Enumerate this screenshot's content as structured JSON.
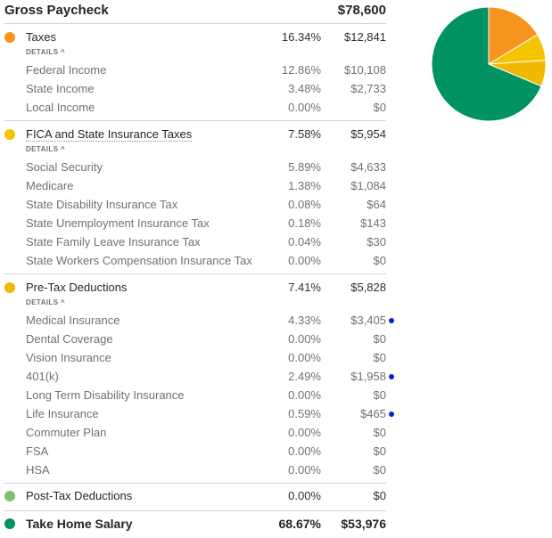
{
  "gross": {
    "label": "Gross Paycheck",
    "amount": "$78,600"
  },
  "details_label": "DETAILS ^",
  "colors": {
    "taxes": "#f7941d",
    "fica": "#f5c400",
    "pretax": "#f0b800",
    "posttax": "#7dc36b",
    "takehome": "#009262",
    "marker": "#0a1fe0"
  },
  "taxes": {
    "label": "Taxes",
    "pct": "16.34%",
    "amount": "$12,841",
    "items": [
      {
        "label": "Federal Income",
        "pct": "12.86%",
        "amount": "$10,108"
      },
      {
        "label": "State Income",
        "pct": "3.48%",
        "amount": "$2,733"
      },
      {
        "label": "Local Income",
        "pct": "0.00%",
        "amount": "$0"
      }
    ]
  },
  "fica": {
    "label": "FICA and State Insurance Taxes",
    "pct": "7.58%",
    "amount": "$5,954",
    "items": [
      {
        "label": "Social Security",
        "pct": "5.89%",
        "amount": "$4,633"
      },
      {
        "label": "Medicare",
        "pct": "1.38%",
        "amount": "$1,084"
      },
      {
        "label": "State Disability Insurance Tax",
        "pct": "0.08%",
        "amount": "$64"
      },
      {
        "label": "State Unemployment Insurance Tax",
        "pct": "0.18%",
        "amount": "$143"
      },
      {
        "label": "State Family Leave Insurance Tax",
        "pct": "0.04%",
        "amount": "$30"
      },
      {
        "label": "State Workers Compensation Insurance Tax",
        "pct": "0.00%",
        "amount": "$0"
      }
    ]
  },
  "pretax": {
    "label": "Pre-Tax Deductions",
    "pct": "7.41%",
    "amount": "$5,828",
    "items": [
      {
        "label": "Medical Insurance",
        "pct": "4.33%",
        "amount": "$3,405"
      },
      {
        "label": "Dental Coverage",
        "pct": "0.00%",
        "amount": "$0"
      },
      {
        "label": "Vision Insurance",
        "pct": "0.00%",
        "amount": "$0"
      },
      {
        "label": "401(k)",
        "pct": "2.49%",
        "amount": "$1,958"
      },
      {
        "label": "Long Term Disability Insurance",
        "pct": "0.00%",
        "amount": "$0"
      },
      {
        "label": "Life Insurance",
        "pct": "0.59%",
        "amount": "$465"
      },
      {
        "label": "Commuter Plan",
        "pct": "0.00%",
        "amount": "$0"
      },
      {
        "label": "FSA",
        "pct": "0.00%",
        "amount": "$0"
      },
      {
        "label": "HSA",
        "pct": "0.00%",
        "amount": "$0"
      }
    ]
  },
  "posttax": {
    "label": "Post-Tax Deductions",
    "pct": "0.00%",
    "amount": "$0"
  },
  "takehome": {
    "label": "Take Home Salary",
    "pct": "68.67%",
    "amount": "$53,976"
  },
  "pie": {
    "slices": [
      {
        "name": "Taxes",
        "value": 16.34,
        "color": "#f7941d"
      },
      {
        "name": "FICA and State Insurance Taxes",
        "value": 7.58,
        "color": "#f5c400"
      },
      {
        "name": "Pre-Tax Deductions",
        "value": 7.41,
        "color": "#f0b800"
      },
      {
        "name": "Post-Tax Deductions",
        "value": 0.0,
        "color": "#7dc36b"
      },
      {
        "name": "Take Home Salary",
        "value": 68.67,
        "color": "#009262"
      }
    ]
  }
}
